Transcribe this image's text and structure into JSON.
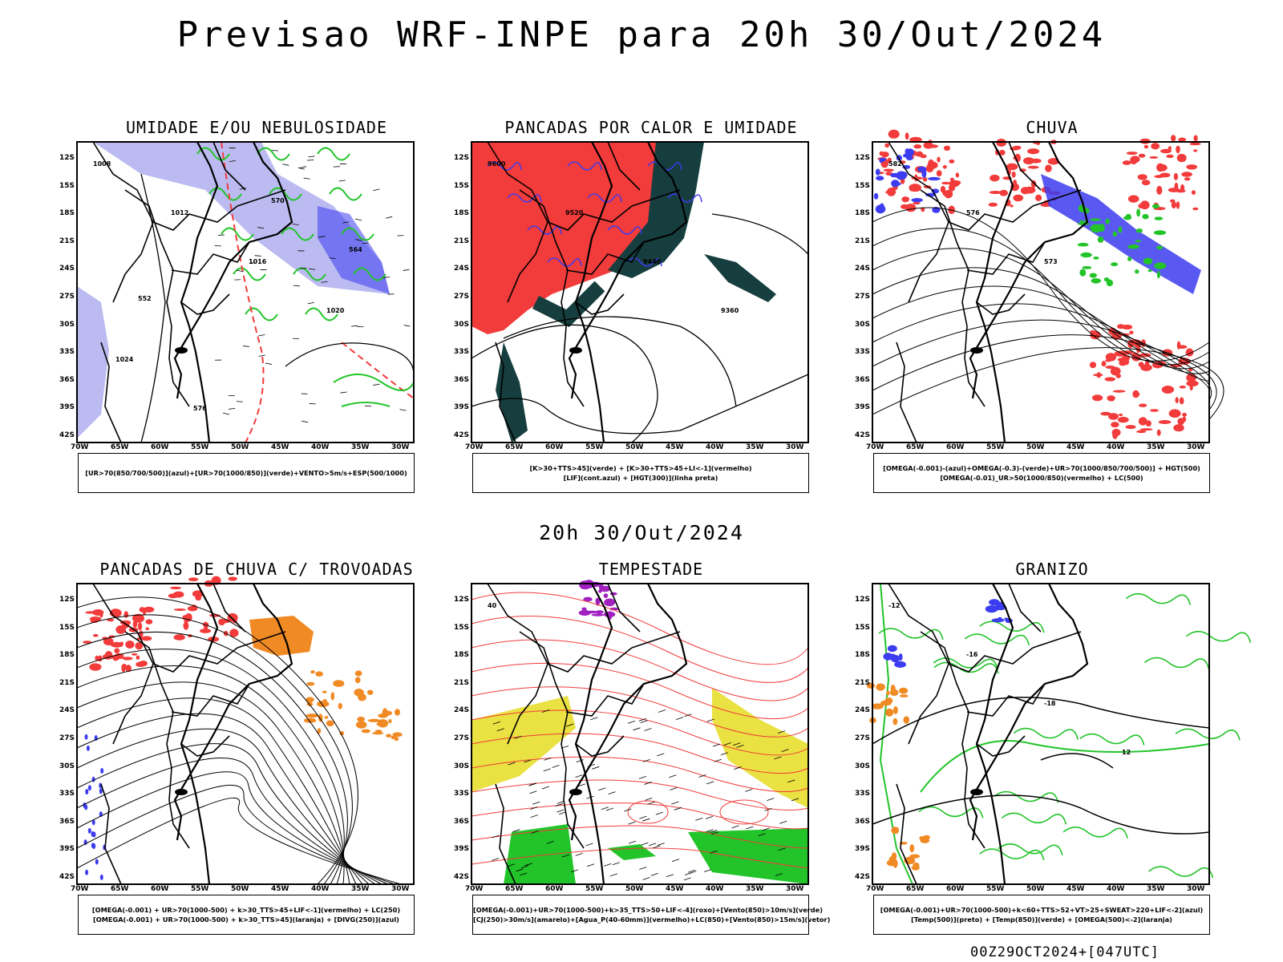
{
  "page_title": "Previsao WRF-INPE  para 20h 30/Out/2024",
  "middle_date": "20h 30/Out/2024",
  "run_id": "00Z29OCT2024+[047UTC]",
  "axes": {
    "lat_labels": [
      "12S",
      "15S",
      "18S",
      "21S",
      "24S",
      "27S",
      "30S",
      "33S",
      "36S",
      "39S",
      "42S"
    ],
    "lon_labels": [
      "70W",
      "65W",
      "60W",
      "55W",
      "50W",
      "45W",
      "40W",
      "35W",
      "30W"
    ]
  },
  "colors": {
    "red": "#f23b3b",
    "blue": "#3c3cf0",
    "green": "#22c42a",
    "lavender": "#aaaaee",
    "teal": "#163e3e",
    "orange": "#f08a24",
    "yellow": "#e8de2e",
    "purple": "#a020c0"
  },
  "panels": [
    {
      "title": "UMIDADE E/OU NEBULOSIDADE",
      "legend": [
        "[UR>70(850/700/500)](azul)+[UR>70(1000/850)](verde)+VENTO>5m/s+ESP(500/1000)"
      ],
      "contours": [
        "1008",
        "1012",
        "1016",
        "1020",
        "1024",
        "576",
        "570",
        "564",
        "552"
      ]
    },
    {
      "title": "PANCADAS POR CALOR E UMIDADE",
      "legend": [
        "[K>30+TTS>45](verde) + [K>30+TTS>45+LI<-1](vermelho)",
        "[LIF](cont.azul) + [HGT(300)](linha preta)"
      ],
      "contours": [
        "9600",
        "9520",
        "9440",
        "9360"
      ]
    },
    {
      "title": "CHUVA",
      "legend": [
        "[OMEGA(-0.001)-(azul)+OMEGA(-0.3)-(verde)+UR>70(1000/850/700/500)] + HGT(500)",
        "[OMEGA(-0.01)_UR>50(1000/850)(vermelho) + LC(500)"
      ],
      "contours": [
        "582",
        "576",
        "573"
      ]
    },
    {
      "title": "PANCADAS DE CHUVA C/ TROVOADAS",
      "legend": [
        "[OMEGA(-0.001) + UR>70(1000-500) + k>30_TTS>45+LIF<-1](vermelho) + LC(250)",
        "[OMEGA(-0.001) + UR>70(1000-500) + k>30_TTS>45](laranja) + [DIVG(250)](azul)"
      ],
      "contours": []
    },
    {
      "title": "TEMPESTADE",
      "legend": [
        "[OMEGA(-0.001)+UR>70(1000-500)+k>35_TTS>50+LIF<-4](roxo)+[Vento(850)>10m/s](verde)",
        "[CJ(250)>30m/s](amarelo)+[Agua_P(40-60mm)](vermelho)+LC(850)+[Vento(850)>15m/s](vetor)"
      ],
      "contours": [
        "40"
      ]
    },
    {
      "title": "GRANIZO",
      "legend": [
        "[OMEGA(-0.001)+UR>70(1000-500)+k<60+TTS>52+VT>25+SWEAT>220+LIF<-2](azul)",
        "[Temp(500)](preto) + [Temp(850)](verde) + [OMEGA(500)<-2](laranja)"
      ],
      "contours": [
        "-12",
        "-16",
        "-18",
        "12"
      ]
    }
  ]
}
